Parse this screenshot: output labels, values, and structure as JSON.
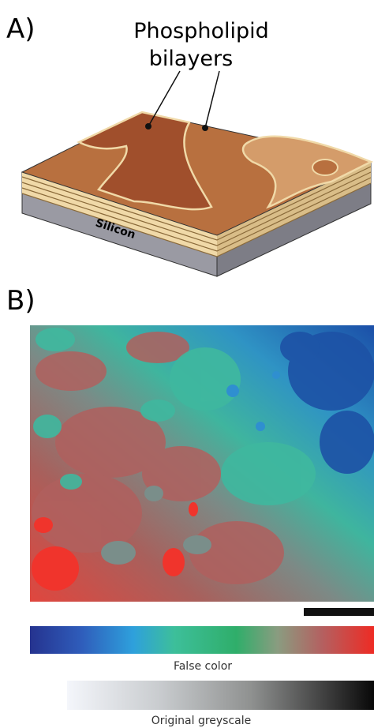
{
  "panel_a": {
    "label": "A)",
    "callout": [
      "Phospholipid",
      "bilayers"
    ],
    "substrate": "Silicon"
  },
  "panel_b": {
    "label": "B)",
    "false_color_caption": "False color",
    "greyscale_caption": "Original greyscale"
  }
}
